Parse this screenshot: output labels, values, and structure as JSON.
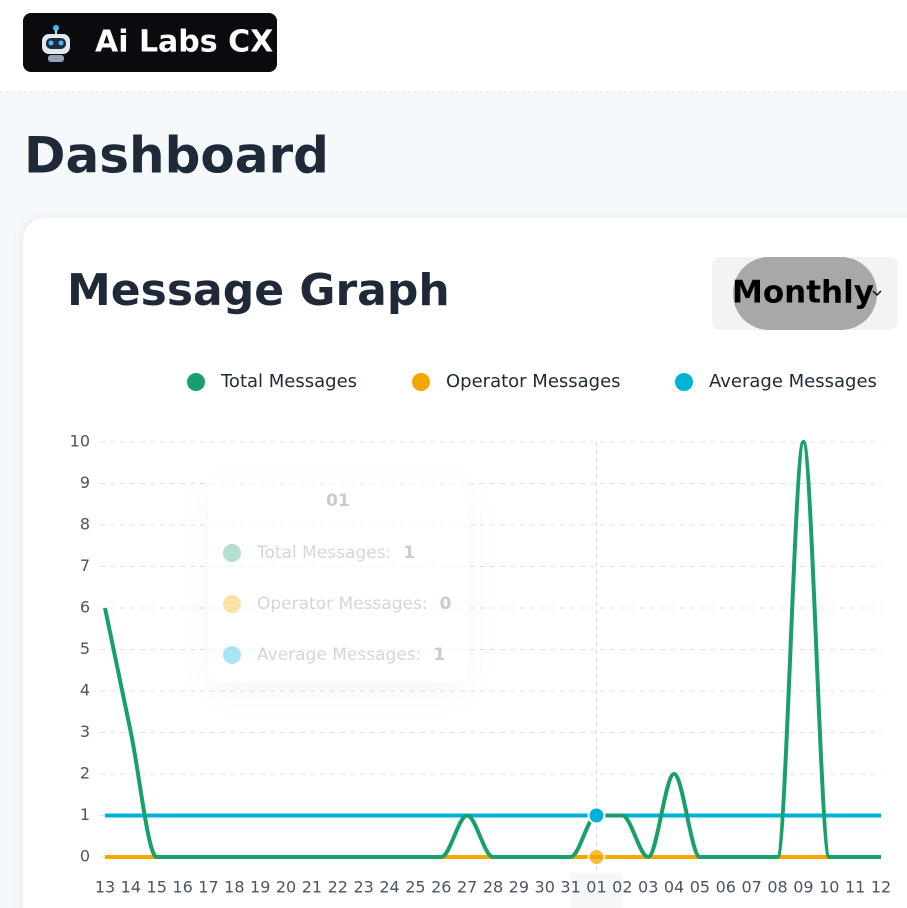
{
  "header": {
    "brand": "Ai Labs CX"
  },
  "page": {
    "title": "Dashboard"
  },
  "card": {
    "title": "Message Graph",
    "period": "Monthly"
  },
  "tooltip": {
    "labels": [
      "Total Messages:",
      "Operator Messages:",
      "Average Messages:"
    ]
  },
  "chart_data": {
    "type": "line",
    "categories": [
      "13",
      "14",
      "15",
      "16",
      "17",
      "18",
      "19",
      "20",
      "21",
      "22",
      "23",
      "24",
      "25",
      "26",
      "27",
      "28",
      "29",
      "30",
      "31",
      "01",
      "02",
      "03",
      "04",
      "05",
      "06",
      "07",
      "08",
      "09",
      "10",
      "11",
      "12"
    ],
    "series": [
      {
        "name": "Total Messages",
        "color": "#17a06c",
        "values": [
          6,
          3,
          0,
          0,
          0,
          0,
          0,
          0,
          0,
          0,
          0,
          0,
          0,
          0,
          1,
          0,
          0,
          0,
          0,
          1,
          1,
          0,
          2,
          0,
          0,
          0,
          0,
          10,
          0,
          0,
          0
        ]
      },
      {
        "name": "Operator Messages",
        "color": "#f5a700",
        "values": [
          0,
          0,
          0,
          0,
          0,
          0,
          0,
          0,
          0,
          0,
          0,
          0,
          0,
          0,
          0,
          0,
          0,
          0,
          0,
          0,
          0,
          0,
          0,
          0,
          0,
          0,
          0,
          0,
          0,
          0,
          0
        ]
      },
      {
        "name": "Average Messages",
        "color": "#00b3d6",
        "values": [
          1,
          1,
          1,
          1,
          1,
          1,
          1,
          1,
          1,
          1,
          1,
          1,
          1,
          1,
          1,
          1,
          1,
          1,
          1,
          1,
          1,
          1,
          1,
          1,
          1,
          1,
          1,
          1,
          1,
          1,
          1
        ]
      }
    ],
    "ylim": [
      0,
      10
    ],
    "yticks": [
      0,
      1,
      2,
      3,
      4,
      5,
      6,
      7,
      8,
      9,
      10
    ],
    "grid": true,
    "legend": "top-right"
  }
}
